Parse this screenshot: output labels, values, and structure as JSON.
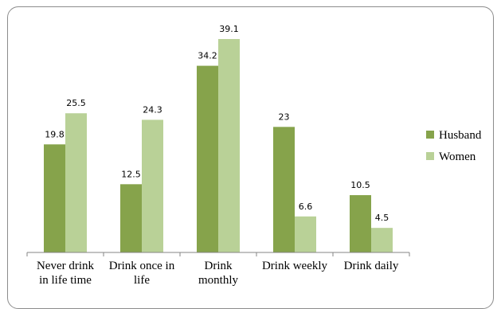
{
  "chart_data": {
    "type": "bar",
    "title": "",
    "xlabel": "",
    "ylabel": "",
    "ylim": [
      0,
      39.1
    ],
    "grid": false,
    "legend_position": "right",
    "categories": [
      [
        "Never drink",
        "in life time"
      ],
      [
        "Drink once in",
        "life"
      ],
      [
        "Drink",
        "monthly"
      ],
      [
        "Drink   weekly"
      ],
      [
        "Drink daily"
      ]
    ],
    "series": [
      {
        "name": "Husband",
        "color": "#86a34b",
        "values": [
          19.8,
          12.5,
          34.2,
          23,
          10.5
        ],
        "labels": [
          "19.8",
          "12.5",
          "34.2",
          "23",
          "10.5"
        ]
      },
      {
        "name": "Women",
        "color": "#b9d197",
        "values": [
          25.5,
          24.3,
          39.1,
          6.6,
          4.5
        ],
        "labels": [
          "25.5",
          "24.3",
          "39.1",
          "6.6",
          "4.5"
        ]
      }
    ]
  }
}
